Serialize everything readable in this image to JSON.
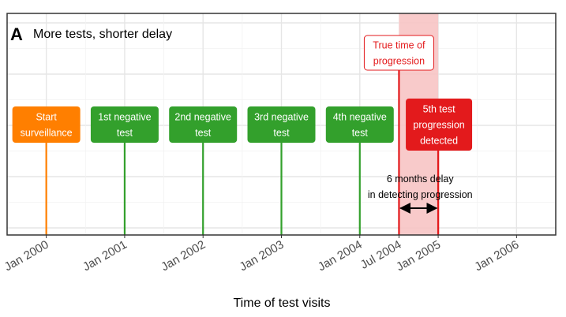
{
  "chart_data": {
    "type": "timeline",
    "panel_letter": "A",
    "title": "More tests, shorter delay",
    "xlabel": "Time of test visits",
    "x_ticks": [
      "Jan 2000",
      "Jan 2001",
      "Jan 2002",
      "Jan 2003",
      "Jan 2004",
      "Jul 2004",
      "Jan 2005",
      "Jan 2006"
    ],
    "xlim": [
      "1999-07",
      "2006-07"
    ],
    "events": [
      {
        "date": "2000-01",
        "label_lines": [
          "Start",
          "surveillance"
        ],
        "color": "#ff7f00"
      },
      {
        "date": "2001-01",
        "label_lines": [
          "1st negative",
          "test"
        ],
        "color": "#33a02c"
      },
      {
        "date": "2002-01",
        "label_lines": [
          "2nd negative",
          "test"
        ],
        "color": "#33a02c"
      },
      {
        "date": "2003-01",
        "label_lines": [
          "3rd negative",
          "test"
        ],
        "color": "#33a02c"
      },
      {
        "date": "2004-01",
        "label_lines": [
          "4th negative",
          "test"
        ],
        "color": "#33a02c"
      },
      {
        "date": "2005-01",
        "label_lines": [
          "5th test",
          "progression",
          "detected"
        ],
        "color": "#e31a1c"
      }
    ],
    "true_progression": {
      "date": "2004-07",
      "label_lines": [
        "True time of",
        "progression"
      ],
      "color": "#e31a1c"
    },
    "delay_window": {
      "start": "2004-07",
      "end": "2005-01",
      "fill": "#f7c4c4"
    },
    "delay_annotation": {
      "lines": [
        "6 months delay",
        "in detecting progression"
      ],
      "months": 6
    },
    "grid": true
  }
}
